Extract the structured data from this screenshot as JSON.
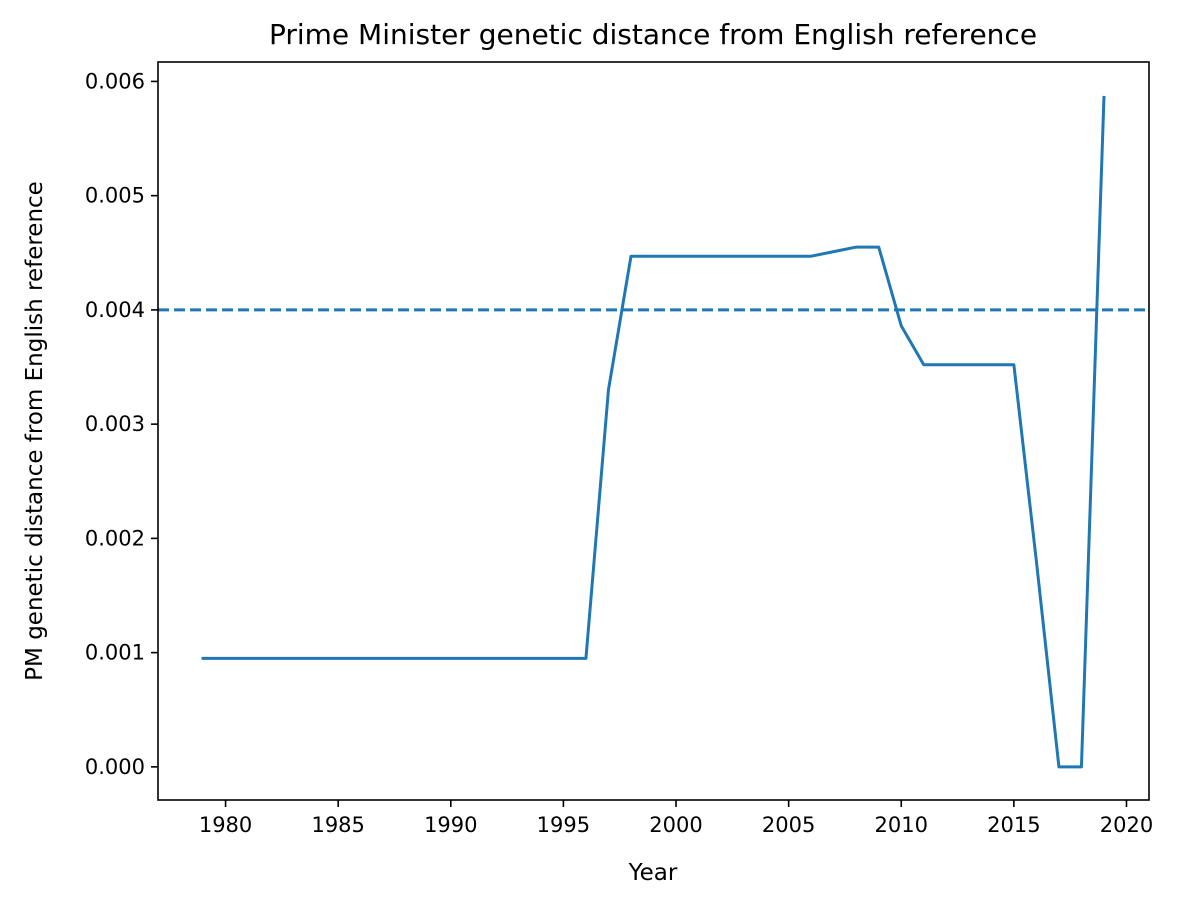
{
  "chart_data": {
    "type": "line",
    "title": "Prime Minister genetic distance from English reference",
    "xlabel": "Year",
    "ylabel": "PM genetic distance from English reference",
    "xlim": [
      1977,
      2021
    ],
    "ylim": [
      -0.00029,
      0.00617
    ],
    "grid": false,
    "legend": "none",
    "x_ticks": [
      1980,
      1985,
      1990,
      1995,
      2000,
      2005,
      2010,
      2015,
      2020
    ],
    "y_ticks": [
      0.0,
      0.001,
      0.002,
      0.003,
      0.004,
      0.005,
      0.006
    ],
    "x_tick_labels": [
      "1980",
      "1985",
      "1990",
      "1995",
      "2000",
      "2005",
      "2010",
      "2015",
      "2020"
    ],
    "y_tick_labels": [
      "0.000",
      "0.001",
      "0.002",
      "0.003",
      "0.004",
      "0.005",
      "0.006"
    ],
    "series": [
      {
        "color": "#1f77b4",
        "x": [
          1979,
          1980,
          1981,
          1982,
          1983,
          1984,
          1985,
          1986,
          1987,
          1988,
          1989,
          1990,
          1991,
          1992,
          1993,
          1994,
          1995,
          1996,
          1997,
          1998,
          1999,
          2000,
          2001,
          2002,
          2003,
          2004,
          2005,
          2006,
          2007,
          2008,
          2009,
          2010,
          2011,
          2012,
          2013,
          2014,
          2015,
          2016,
          2017,
          2018,
          2019
        ],
        "y": [
          0.00095,
          0.00095,
          0.00095,
          0.00095,
          0.00095,
          0.00095,
          0.00095,
          0.00095,
          0.00095,
          0.00095,
          0.00095,
          0.00095,
          0.00095,
          0.00095,
          0.00095,
          0.00095,
          0.00095,
          0.00095,
          0.0033,
          0.00447,
          0.00447,
          0.00447,
          0.00447,
          0.00447,
          0.00447,
          0.00447,
          0.00447,
          0.00447,
          0.00451,
          0.00455,
          0.00455,
          0.00386,
          0.00352,
          0.00352,
          0.00352,
          0.00352,
          0.00352,
          0.0018,
          0.0,
          0.0,
          0.00586
        ]
      }
    ],
    "reference_line": {
      "y": 0.004,
      "style": "dashed",
      "color": "#1f77b4"
    }
  }
}
